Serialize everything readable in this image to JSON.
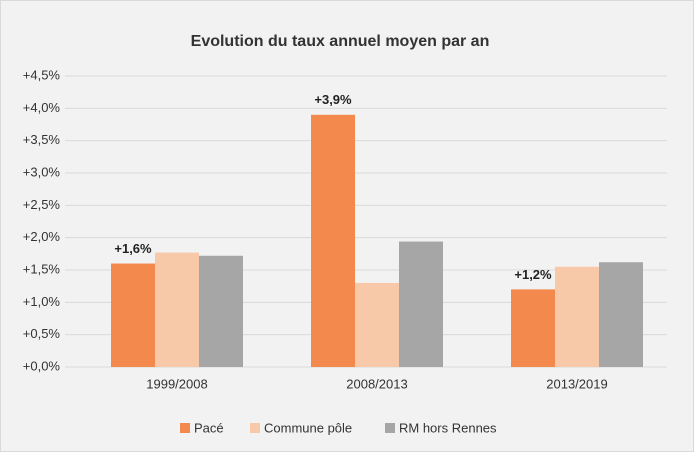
{
  "chart_data": {
    "type": "bar",
    "title": "Evolution du taux annuel moyen par an",
    "categories": [
      "1999/2008",
      "2008/2013",
      "2013/2019"
    ],
    "series": [
      {
        "name": "Pacé",
        "color": "#f4894d",
        "values": [
          1.6,
          3.9,
          1.2
        ],
        "value_labels": [
          "+1,6%",
          "+3,9%",
          "+1,2%"
        ]
      },
      {
        "name": "Commune pôle",
        "color": "#f8c9a8",
        "values": [
          1.77,
          1.3,
          1.55
        ]
      },
      {
        "name": "RM hors Rennes",
        "color": "#a6a6a6",
        "values": [
          1.72,
          1.94,
          1.62
        ]
      }
    ],
    "ylim": [
      0,
      4.5
    ],
    "yticks": [
      {
        "value": 0,
        "label": "+0,0%"
      },
      {
        "value": 0.5,
        "label": "+0,5%"
      },
      {
        "value": 1,
        "label": "+1,0%"
      },
      {
        "value": 1.5,
        "label": "+1,5%"
      },
      {
        "value": 2,
        "label": "+2,0%"
      },
      {
        "value": 2.5,
        "label": "+2,5%"
      },
      {
        "value": 3,
        "label": "+3,0%"
      },
      {
        "value": 3.5,
        "label": "+3,5%"
      },
      {
        "value": 4,
        "label": "+4,0%"
      },
      {
        "value": 4.5,
        "label": "+4,5%"
      }
    ],
    "grid": true,
    "legend": "bottom"
  }
}
